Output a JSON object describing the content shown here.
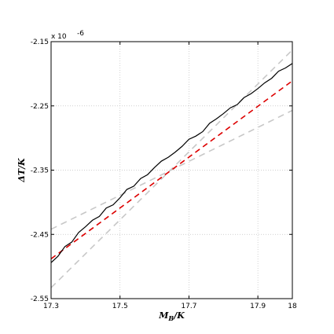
{
  "chart_data": {
    "type": "line",
    "title": "",
    "xlabel": "M_B/K",
    "ylabel": "ΔT/K",
    "y_multiplier": "x 10",
    "y_exponent": "-6",
    "xlim": [
      17.3,
      18.0
    ],
    "ylim": [
      -2.55,
      -2.15
    ],
    "xticks": [
      "17.3",
      "17.5",
      "17.7",
      "17.9",
      "18"
    ],
    "xtick_values": [
      17.3,
      17.5,
      17.7,
      17.9,
      18.0
    ],
    "yticks": [
      "-2.15",
      "-2.25",
      "-2.35",
      "-2.45",
      "-2.55"
    ],
    "ytick_values": [
      -2.15,
      -2.25,
      -2.35,
      -2.45,
      -2.55
    ],
    "grid": true,
    "colors": {
      "data": "#000000",
      "fit": "#dd0000",
      "bounds": "#c8c8c8",
      "grid": "#c0c0c0"
    },
    "series": [
      {
        "style": "solid",
        "x": [
          17.3,
          17.32,
          17.34,
          17.36,
          17.38,
          17.4,
          17.42,
          17.44,
          17.46,
          17.48,
          17.5,
          17.52,
          17.54,
          17.56,
          17.58,
          17.6,
          17.62,
          17.64,
          17.66,
          17.68,
          17.7,
          17.72,
          17.74,
          17.76,
          17.78,
          17.8,
          17.82,
          17.84,
          17.86,
          17.88,
          17.9,
          17.92,
          17.94,
          17.96,
          17.98,
          18.0
        ],
        "y": [
          -2.494,
          -2.484,
          -2.469,
          -2.462,
          -2.447,
          -2.438,
          -2.428,
          -2.422,
          -2.409,
          -2.404,
          -2.393,
          -2.38,
          -2.375,
          -2.363,
          -2.357,
          -2.346,
          -2.336,
          -2.33,
          -2.322,
          -2.313,
          -2.302,
          -2.297,
          -2.29,
          -2.277,
          -2.27,
          -2.262,
          -2.253,
          -2.248,
          -2.237,
          -2.231,
          -2.223,
          -2.214,
          -2.207,
          -2.196,
          -2.191,
          -2.184
        ]
      },
      {
        "style": "dashed",
        "x": [
          17.3,
          18.0
        ],
        "y": [
          -2.488,
          -2.211
        ]
      },
      {
        "style": "dashed",
        "x": [
          17.3,
          18.0
        ],
        "y": [
          -2.533,
          -2.163
        ]
      },
      {
        "style": "dashed",
        "x": [
          17.3,
          18.0
        ],
        "y": [
          -2.442,
          -2.257
        ]
      }
    ]
  }
}
